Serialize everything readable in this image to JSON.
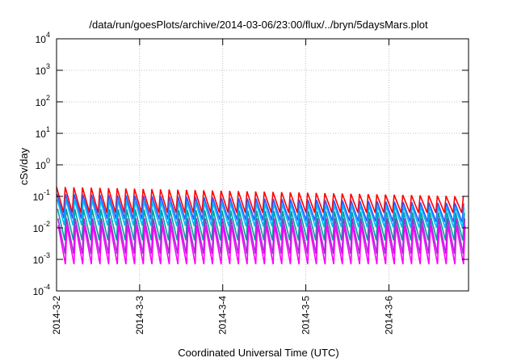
{
  "chart_data": {
    "type": "line",
    "title": "/data/run/goesPlots/archive/2014-03-06/23:00/flux/../bryn/5daysMars.plot",
    "xlabel": "Coordinated Universal Time (UTC)",
    "ylabel": "cSv/day",
    "yscale": "log",
    "ylim": [
      0.0001,
      10000
    ],
    "y_ticks": [
      {
        "base": "10",
        "exp": "-4",
        "value": 0.0001
      },
      {
        "base": "10",
        "exp": "-3",
        "value": 0.001
      },
      {
        "base": "10",
        "exp": "-2",
        "value": 0.01
      },
      {
        "base": "10",
        "exp": "-1",
        "value": 0.1
      },
      {
        "base": "10",
        "exp": "0",
        "value": 1
      },
      {
        "base": "10",
        "exp": "1",
        "value": 10
      },
      {
        "base": "10",
        "exp": "2",
        "value": 100
      },
      {
        "base": "10",
        "exp": "3",
        "value": 1000
      },
      {
        "base": "10",
        "exp": "4",
        "value": 10000
      }
    ],
    "xlim": [
      "2014-03-02",
      "2014-03-06T23:00"
    ],
    "x_ticks": [
      "2014-3-2",
      "2014-3-3",
      "2014-3-4",
      "2014-3-5",
      "2014-3-6"
    ],
    "grid": true,
    "sawtooth_period_hours": 2.5,
    "series": [
      {
        "color": "#ff0000",
        "peak_start": 0.2,
        "peak_end": 0.1,
        "trough_start": 0.03,
        "trough_end": 0.03
      },
      {
        "color": "#3355ff",
        "peak_start": 0.12,
        "peak_end": 0.06,
        "trough_start": 0.02,
        "trough_end": 0.015
      },
      {
        "color": "#00b8ff",
        "peak_start": 0.08,
        "peak_end": 0.045,
        "trough_start": 0.012,
        "trough_end": 0.01
      },
      {
        "color": "#00a0a0",
        "peak_start": 0.04,
        "peak_end": 0.03,
        "trough_start": 0.004,
        "trough_end": 0.004
      },
      {
        "color": "#a030d0",
        "peak_start": 0.02,
        "peak_end": 0.02,
        "trough_start": 0.0015,
        "trough_end": 0.0015
      },
      {
        "color": "#ff00ff",
        "peak_start": 0.012,
        "peak_end": 0.012,
        "trough_start": 0.0007,
        "trough_end": 0.0007
      }
    ]
  }
}
